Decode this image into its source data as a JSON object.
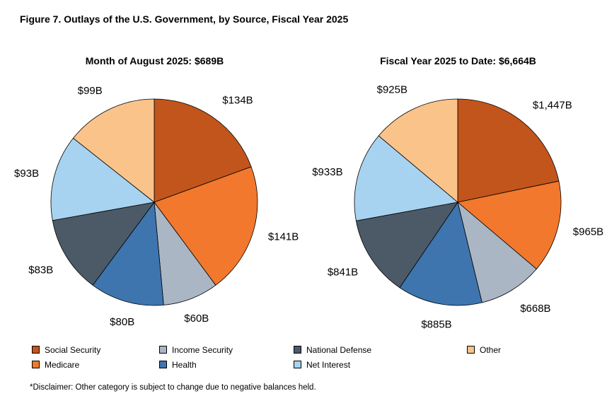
{
  "figure_title": "Figure 7. Outlays of the U.S. Government, by Source, Fiscal Year 2025",
  "disclaimer": "*Disclaimer: Other category is subject to change due to negative balances held.",
  "legend": {
    "items": [
      {
        "label": "Social Security",
        "color": "#C2551C"
      },
      {
        "label": "Medicare",
        "color": "#F1782D"
      },
      {
        "label": "Income Security",
        "color": "#ABB6C4"
      },
      {
        "label": "Health",
        "color": "#3E75AE"
      },
      {
        "label": "National Defense",
        "color": "#4C5A68"
      },
      {
        "label": "Net Interest",
        "color": "#A8D3F0"
      },
      {
        "label": "Other",
        "color": "#FAC38A"
      }
    ]
  },
  "chart_data": [
    {
      "type": "pie",
      "title": "Month of August 2025: $689B",
      "total_label": "$689B",
      "categories": [
        "Social Security",
        "Medicare",
        "Income Security",
        "Health",
        "National Defense",
        "Net Interest",
        "Other"
      ],
      "values": [
        134,
        141,
        60,
        80,
        83,
        93,
        99
      ],
      "labels": [
        "$134B",
        "$141B",
        "$60B",
        "$80B",
        "$83B",
        "$93B",
        "$99B"
      ],
      "start_angle_deg": 0,
      "direction": "clockwise",
      "legend_position": "bottom"
    },
    {
      "type": "pie",
      "title": "Fiscal Year 2025 to Date: $6,664B",
      "total_label": "$6,664B",
      "categories": [
        "Social Security",
        "Medicare",
        "Income Security",
        "Health",
        "National Defense",
        "Net Interest",
        "Other"
      ],
      "values": [
        1447,
        965,
        668,
        885,
        841,
        933,
        925
      ],
      "labels": [
        "$1,447B",
        "$965B",
        "$668B",
        "$885B",
        "$841B",
        "$933B",
        "$925B"
      ],
      "start_angle_deg": 0,
      "direction": "clockwise",
      "legend_position": "bottom"
    }
  ]
}
